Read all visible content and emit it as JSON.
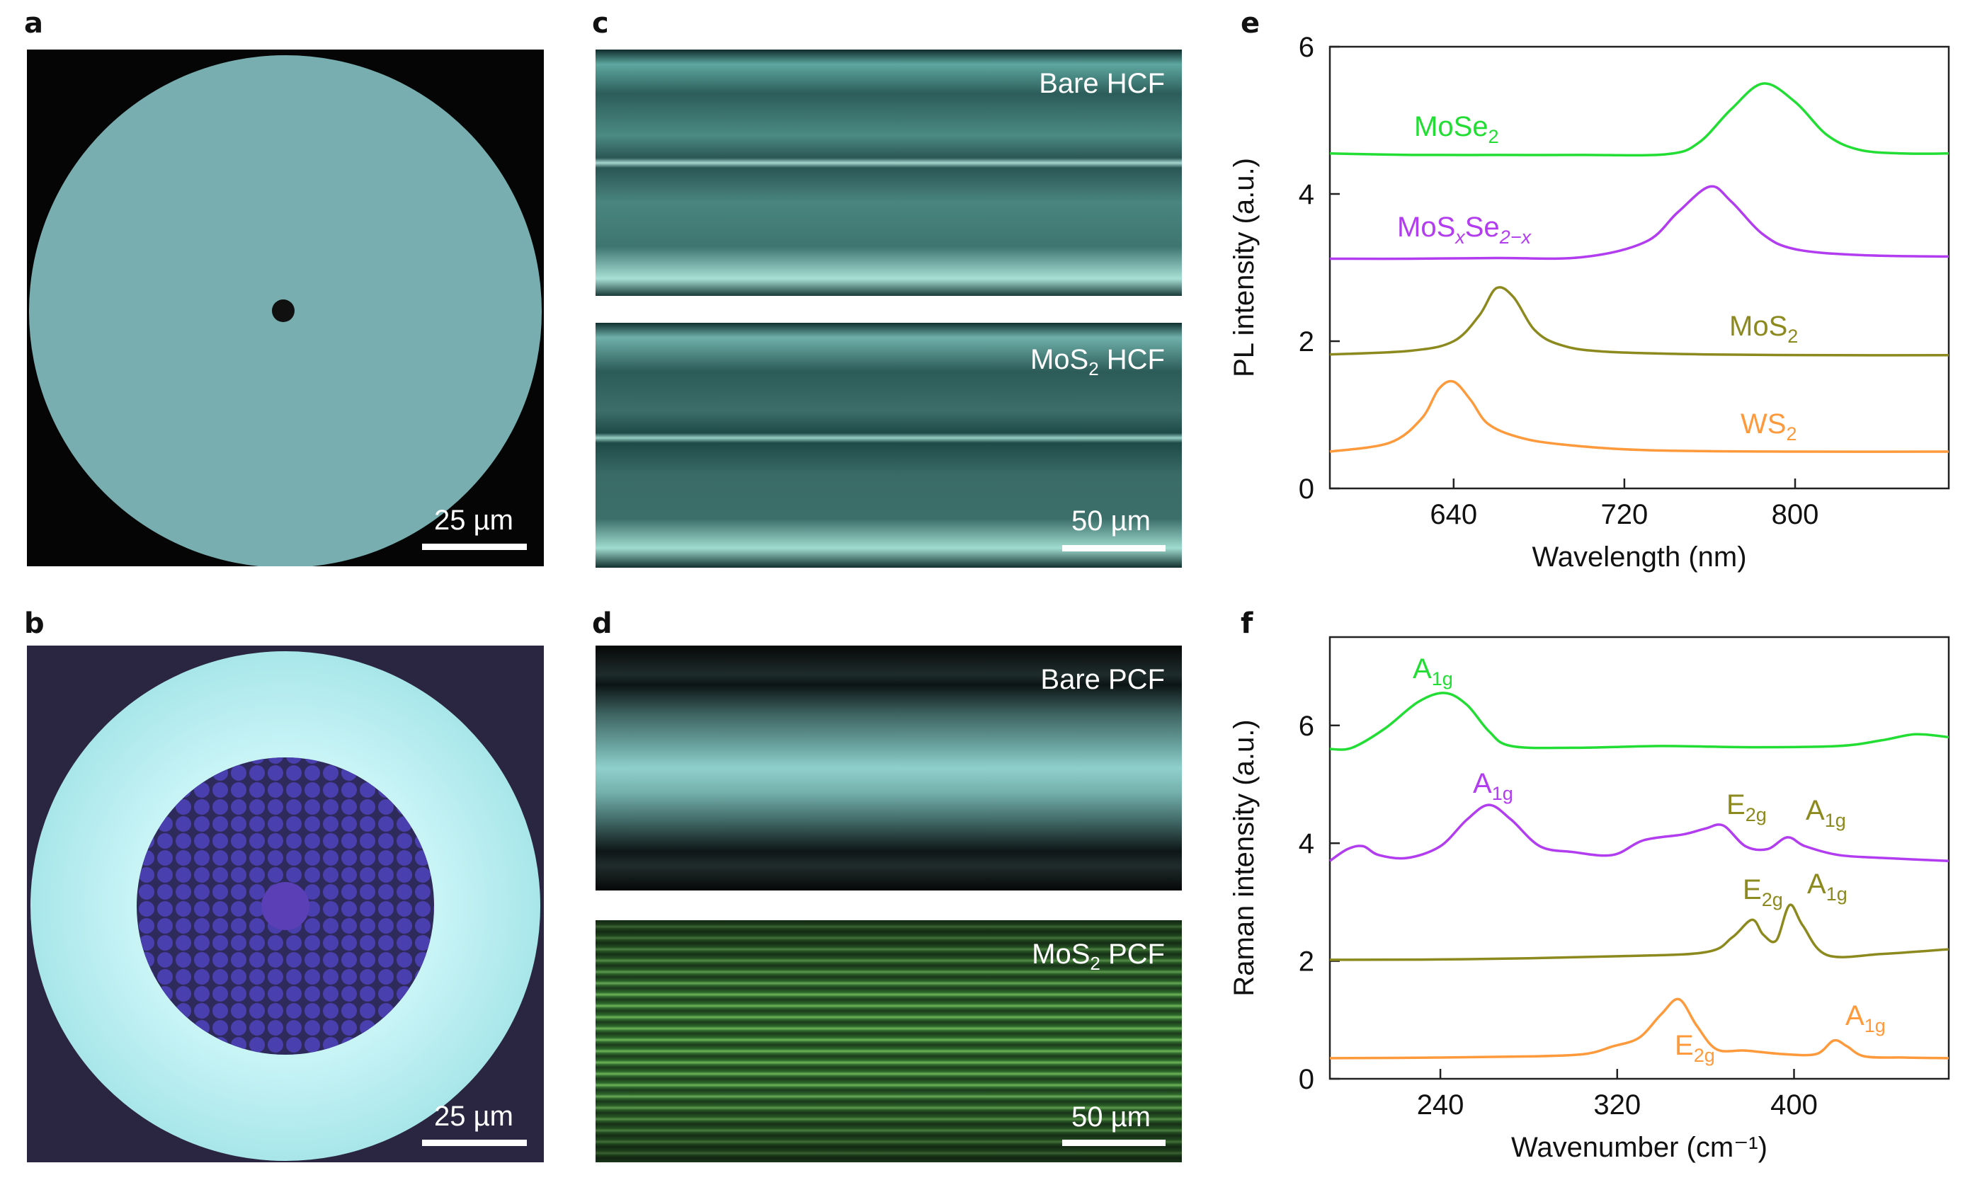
{
  "panels": {
    "a": {
      "label": "a",
      "scalebar": "25 µm"
    },
    "b": {
      "label": "b",
      "scalebar": "25 µm"
    },
    "c": {
      "label": "c",
      "top_text": "Bare HCF",
      "bottom_text_main": "MoS",
      "bottom_text_sub": "2",
      "bottom_text_tail": " HCF",
      "scalebar": "50 µm"
    },
    "d": {
      "label": "d",
      "top_text": "Bare PCF",
      "bottom_text_main": "MoS",
      "bottom_text_sub": "2",
      "bottom_text_tail": " PCF",
      "scalebar": "50 µm"
    },
    "e": {
      "label": "e"
    },
    "f": {
      "label": "f"
    }
  },
  "colors": {
    "green": "#22dd33",
    "purple": "#b23cf0",
    "olive": "#8c8a1e",
    "orange": "#ff9a3c"
  },
  "chart_data": [
    {
      "panel": "e",
      "type": "line",
      "xlabel": "Wavelength (nm)",
      "ylabel": "PL intensity (a.u.)",
      "xlim": [
        582,
        872
      ],
      "ylim": [
        0,
        6
      ],
      "xticks": [
        640,
        720,
        800
      ],
      "yticks": [
        0,
        2,
        4,
        6
      ],
      "series": [
        {
          "name": "MoSe2",
          "label_main": "MoSe",
          "label_sub": "2",
          "color": "#22dd33",
          "x": [
            582,
            620,
            660,
            700,
            740,
            755,
            770,
            785,
            800,
            815,
            830,
            850,
            872
          ],
          "y": [
            4.55,
            4.53,
            4.53,
            4.53,
            4.54,
            4.7,
            5.15,
            5.5,
            5.25,
            4.8,
            4.6,
            4.55,
            4.55
          ]
        },
        {
          "name": "MoSxSe2-x",
          "label_main": "MoS",
          "label_sub1": "x",
          "label_mid": "Se",
          "label_sub2": "2−x",
          "color": "#b23cf0",
          "x": [
            582,
            620,
            660,
            700,
            730,
            745,
            760,
            770,
            785,
            800,
            830,
            872
          ],
          "y": [
            3.12,
            3.12,
            3.13,
            3.14,
            3.35,
            3.75,
            4.1,
            3.9,
            3.45,
            3.25,
            3.17,
            3.15
          ]
        },
        {
          "name": "MoS2",
          "label_main": "MoS",
          "label_sub": "2",
          "color": "#8c8a1e",
          "x": [
            582,
            620,
            640,
            652,
            660,
            668,
            678,
            690,
            710,
            760,
            820,
            872
          ],
          "y": [
            1.82,
            1.87,
            2.0,
            2.35,
            2.72,
            2.6,
            2.15,
            1.95,
            1.86,
            1.82,
            1.81,
            1.81
          ]
        },
        {
          "name": "WS2",
          "label_main": "WS",
          "label_sub": "2",
          "color": "#ff9a3c",
          "x": [
            582,
            610,
            625,
            633,
            640,
            648,
            656,
            670,
            690,
            730,
            800,
            872
          ],
          "y": [
            0.5,
            0.62,
            0.95,
            1.35,
            1.45,
            1.2,
            0.88,
            0.7,
            0.6,
            0.52,
            0.5,
            0.5
          ]
        }
      ]
    },
    {
      "panel": "f",
      "type": "line",
      "xlabel": "Wavenumber (cm⁻¹)",
      "ylabel": "Raman intensity (a.u.)",
      "xlim": [
        190,
        470
      ],
      "ylim": [
        0,
        7.5
      ],
      "xticks": [
        240,
        320,
        400
      ],
      "yticks": [
        0,
        2,
        4,
        6
      ],
      "series": [
        {
          "name": "MoSe2",
          "color": "#22dd33",
          "x": [
            190,
            200,
            215,
            230,
            242,
            252,
            262,
            272,
            300,
            340,
            380,
            420,
            440,
            455,
            470
          ],
          "y": [
            5.6,
            5.62,
            5.95,
            6.4,
            6.55,
            6.35,
            5.9,
            5.65,
            5.62,
            5.65,
            5.63,
            5.65,
            5.75,
            5.85,
            5.8
          ]
        },
        {
          "name": "MoSxSe2-x",
          "color": "#b23cf0",
          "x": [
            190,
            198,
            205,
            212,
            225,
            240,
            252,
            262,
            272,
            285,
            300,
            318,
            332,
            350,
            360,
            368,
            378,
            388,
            397,
            405,
            420,
            440,
            470
          ],
          "y": [
            3.7,
            3.9,
            3.95,
            3.8,
            3.75,
            3.95,
            4.4,
            4.65,
            4.4,
            3.95,
            3.85,
            3.8,
            4.05,
            4.15,
            4.25,
            4.3,
            3.95,
            3.9,
            4.1,
            3.95,
            3.8,
            3.75,
            3.7
          ]
        },
        {
          "name": "MoS2",
          "color": "#8c8a1e",
          "x": [
            190,
            250,
            320,
            360,
            372,
            381,
            386,
            392,
            398,
            404,
            415,
            440,
            470
          ],
          "y": [
            2.02,
            2.03,
            2.08,
            2.15,
            2.4,
            2.7,
            2.45,
            2.35,
            2.95,
            2.6,
            2.1,
            2.12,
            2.2
          ]
        },
        {
          "name": "WS2",
          "color": "#ff9a3c",
          "x": [
            190,
            240,
            280,
            305,
            318,
            330,
            340,
            348,
            356,
            365,
            378,
            395,
            410,
            418,
            424,
            432,
            450,
            470
          ],
          "y": [
            0.35,
            0.36,
            0.38,
            0.42,
            0.55,
            0.7,
            1.1,
            1.35,
            0.9,
            0.5,
            0.48,
            0.42,
            0.42,
            0.65,
            0.55,
            0.38,
            0.36,
            0.35
          ]
        }
      ]
    }
  ],
  "annotations_f": [
    {
      "main": "A",
      "sub": "1g",
      "color": "#22dd33"
    },
    {
      "main": "A",
      "sub": "1g",
      "color": "#b23cf0"
    },
    {
      "main": "E",
      "sub": "2g",
      "color": "#8c8a1e"
    },
    {
      "main": "A",
      "sub": "1g",
      "color": "#8c8a1e"
    },
    {
      "main": "E",
      "sub": "2g",
      "color": "#8c8a1e"
    },
    {
      "main": "A",
      "sub": "1g",
      "color": "#8c8a1e"
    },
    {
      "main": "E",
      "sub": "2g",
      "color": "#ff9a3c"
    },
    {
      "main": "A",
      "sub": "1g",
      "color": "#ff9a3c"
    }
  ]
}
